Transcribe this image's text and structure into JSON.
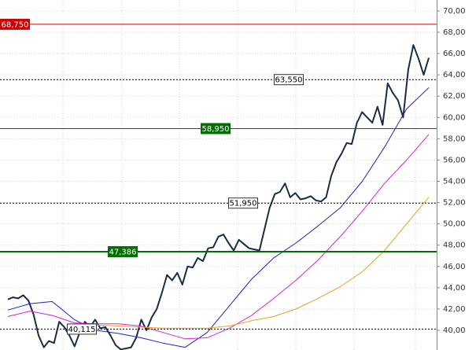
{
  "chart_data": {
    "type": "line",
    "ylim": [
      38150,
      71030
    ],
    "yticks": [
      {
        "value": 40000,
        "label": "40,00"
      },
      {
        "value": 42000,
        "label": "42,00"
      },
      {
        "value": 44000,
        "label": "44,00"
      },
      {
        "value": 46000,
        "label": "46,00"
      },
      {
        "value": 48000,
        "label": "48,00"
      },
      {
        "value": 50000,
        "label": "50,00"
      },
      {
        "value": 52000,
        "label": "52,00"
      },
      {
        "value": 54000,
        "label": "54,00"
      },
      {
        "value": 56000,
        "label": "56,00"
      },
      {
        "value": 58000,
        "label": "58,00"
      },
      {
        "value": 60000,
        "label": "60,00"
      },
      {
        "value": 62000,
        "label": "62,00"
      },
      {
        "value": 64000,
        "label": "64,00"
      },
      {
        "value": 66000,
        "label": "66,00"
      },
      {
        "value": 68000,
        "label": "68,00"
      },
      {
        "value": 70000,
        "label": "70,00"
      }
    ],
    "grid": true,
    "series": [
      {
        "color": "#1c2b45",
        "width": 2,
        "values": [
          42900,
          43100,
          43000,
          43300,
          42800,
          41500,
          39500,
          38400,
          39000,
          38800,
          40800,
          40300,
          39500,
          38500,
          39800,
          40800,
          40300,
          41000,
          40200,
          40300,
          39500,
          38600,
          38200,
          38300,
          38400,
          39300,
          41000,
          40000,
          41200,
          42000,
          43500,
          45200,
          44700,
          45400,
          44300,
          46000,
          45900,
          46800,
          46500,
          47700,
          47800,
          48800,
          49000,
          48200,
          47500,
          48500,
          48100,
          47700,
          47600,
          47500,
          49500,
          51500,
          52800,
          53000,
          53800,
          52500,
          52900,
          52300,
          52400,
          52600,
          52200,
          52100,
          52500,
          54500,
          55800,
          56600,
          57600,
          57500,
          59500,
          60500,
          60000,
          59500,
          61000,
          59300,
          63200,
          62300,
          61600,
          60000,
          64500,
          66800,
          65500,
          64000,
          65600
        ]
      },
      {
        "color": "#2222cc",
        "width": 1,
        "values": [
          41900,
          42500,
          42700,
          41000,
          40000,
          39700,
          39300,
          38800,
          38400,
          39800,
          42300,
          44800,
          46800,
          48200,
          49800,
          51500,
          54000,
          57200,
          60800,
          62800
        ]
      },
      {
        "color": "#e020d0",
        "width": 1,
        "values": [
          41300,
          41800,
          41400,
          40700,
          40600,
          40600,
          40400,
          39800,
          39200,
          39300,
          40200,
          41400,
          43000,
          44700,
          46600,
          48800,
          51200,
          53800,
          56000,
          58400
        ]
      },
      {
        "color": "#f0a020",
        "width": 1,
        "values": [
          null,
          null,
          null,
          40600,
          40500,
          40400,
          40300,
          40200,
          40200,
          40200,
          40400,
          40900,
          41300,
          42000,
          43000,
          44100,
          45500,
          47500,
          50000,
          52500
        ]
      }
    ],
    "levels": [
      {
        "value": 68750,
        "label": "68,750",
        "color": "#d00000",
        "style": "solid"
      },
      {
        "value": 58950,
        "label": "58,950",
        "color": "#007000",
        "style": "solid"
      },
      {
        "value": 47386,
        "label": "47,386",
        "color": "#007000",
        "style": "bold"
      },
      {
        "value": 63550,
        "label": "63,550",
        "color": "#000000",
        "style": "dashed"
      },
      {
        "value": 51950,
        "label": "51,950",
        "color": "#000000",
        "style": "dashed"
      },
      {
        "value": 40115,
        "label": "40,115",
        "color": "#000000",
        "style": "dashed"
      }
    ]
  }
}
